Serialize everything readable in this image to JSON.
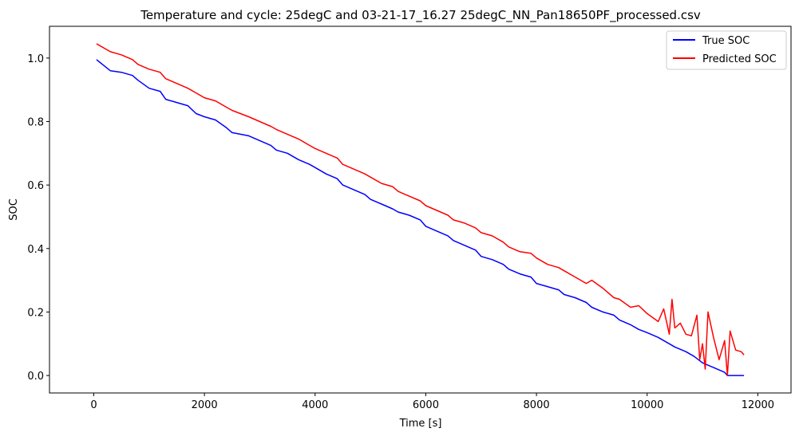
{
  "chart_data": {
    "type": "line",
    "title": "Temperature and cycle: 25degC and 03-21-17_16.27 25degC_NN_Pan18650PF_processed.csv",
    "xlabel": "Time [s]",
    "ylabel": "SOC",
    "xlim": [
      -800,
      12600
    ],
    "ylim": [
      -0.055,
      1.1
    ],
    "xticks": [
      0,
      2000,
      4000,
      6000,
      8000,
      10000,
      12000
    ],
    "xtick_labels": [
      "0",
      "2000",
      "4000",
      "6000",
      "8000",
      "10000",
      "12000"
    ],
    "yticks": [
      0.0,
      0.2,
      0.4,
      0.6,
      0.8,
      1.0
    ],
    "ytick_labels": [
      "0.0",
      "0.2",
      "0.4",
      "0.6",
      "0.8",
      "1.0"
    ],
    "grid": false,
    "legend_position": "top-right",
    "series": [
      {
        "name": "True SOC",
        "color": "#0000ff",
        "x": [
          50,
          300,
          500,
          700,
          800,
          1000,
          1200,
          1300,
          1500,
          1700,
          1850,
          2000,
          2200,
          2400,
          2500,
          2800,
          3000,
          3200,
          3300,
          3500,
          3700,
          3900,
          4000,
          4200,
          4400,
          4500,
          4700,
          4900,
          5000,
          5200,
          5400,
          5500,
          5700,
          5900,
          6000,
          6200,
          6400,
          6500,
          6700,
          6900,
          7000,
          7200,
          7400,
          7500,
          7700,
          7900,
          8000,
          8200,
          8400,
          8500,
          8700,
          8900,
          9000,
          9200,
          9400,
          9500,
          9700,
          9850,
          10000,
          10200,
          10400,
          10500,
          10700,
          10850,
          11000,
          11200,
          11400,
          11450,
          11750
        ],
        "y": [
          0.995,
          0.96,
          0.955,
          0.945,
          0.93,
          0.905,
          0.895,
          0.87,
          0.86,
          0.85,
          0.825,
          0.815,
          0.805,
          0.78,
          0.765,
          0.755,
          0.74,
          0.725,
          0.71,
          0.7,
          0.68,
          0.665,
          0.655,
          0.635,
          0.62,
          0.6,
          0.585,
          0.57,
          0.555,
          0.54,
          0.525,
          0.515,
          0.505,
          0.49,
          0.47,
          0.455,
          0.44,
          0.425,
          0.41,
          0.395,
          0.375,
          0.365,
          0.35,
          0.335,
          0.32,
          0.31,
          0.29,
          0.28,
          0.27,
          0.255,
          0.245,
          0.23,
          0.215,
          0.2,
          0.19,
          0.175,
          0.16,
          0.145,
          0.135,
          0.12,
          0.1,
          0.09,
          0.075,
          0.06,
          0.04,
          0.025,
          0.01,
          0.0,
          0.0
        ]
      },
      {
        "name": "Predicted SOC",
        "color": "#ff0000",
        "x": [
          50,
          300,
          500,
          700,
          800,
          1000,
          1200,
          1300,
          1500,
          1700,
          1850,
          2000,
          2200,
          2400,
          2500,
          2800,
          3000,
          3200,
          3300,
          3500,
          3700,
          3900,
          4000,
          4200,
          4400,
          4500,
          4700,
          4900,
          5000,
          5200,
          5400,
          5500,
          5700,
          5900,
          6000,
          6200,
          6400,
          6500,
          6700,
          6900,
          7000,
          7200,
          7400,
          7500,
          7700,
          7900,
          8000,
          8200,
          8400,
          8500,
          8700,
          8900,
          9000,
          9200,
          9400,
          9500,
          9700,
          9850,
          10000,
          10200,
          10300,
          10400,
          10450,
          10500,
          10600,
          10700,
          10800,
          10900,
          10950,
          11000,
          11050,
          11100,
          11200,
          11300,
          11400,
          11450,
          11500,
          11600,
          11700,
          11750
        ],
        "y": [
          1.045,
          1.02,
          1.01,
          0.995,
          0.98,
          0.965,
          0.955,
          0.935,
          0.92,
          0.905,
          0.89,
          0.875,
          0.865,
          0.845,
          0.835,
          0.815,
          0.8,
          0.785,
          0.775,
          0.76,
          0.745,
          0.725,
          0.715,
          0.7,
          0.685,
          0.665,
          0.65,
          0.635,
          0.625,
          0.605,
          0.595,
          0.58,
          0.565,
          0.55,
          0.535,
          0.52,
          0.505,
          0.49,
          0.48,
          0.465,
          0.45,
          0.44,
          0.42,
          0.405,
          0.39,
          0.385,
          0.37,
          0.35,
          0.34,
          0.33,
          0.31,
          0.29,
          0.3,
          0.275,
          0.245,
          0.24,
          0.215,
          0.22,
          0.195,
          0.17,
          0.21,
          0.13,
          0.24,
          0.15,
          0.165,
          0.13,
          0.125,
          0.19,
          0.05,
          0.1,
          0.02,
          0.2,
          0.12,
          0.05,
          0.11,
          0.0,
          0.14,
          0.08,
          0.075,
          0.065
        ]
      }
    ]
  }
}
